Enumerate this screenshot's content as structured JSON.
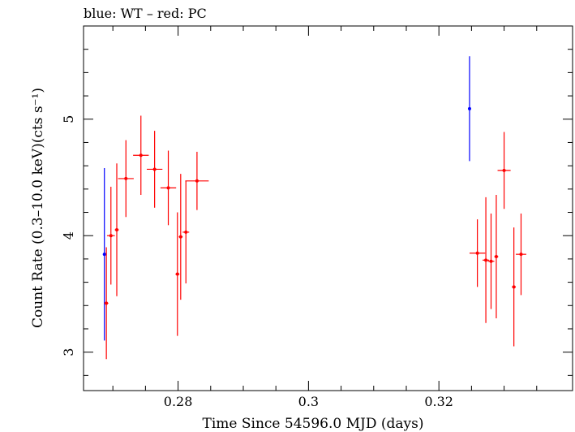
{
  "header": "blue: WT – red: PC",
  "chart_data": {
    "type": "scatter",
    "xlabel": "Time Since 54596.0 MJD (days)",
    "ylabel": "Count Rate (0.3–10.0 keV)(cts s⁻¹)",
    "xlim": [
      0.2655,
      0.3405
    ],
    "ylim": [
      2.67,
      5.8
    ],
    "x_ticks": [
      {
        "value": 0.28,
        "label": "0.28"
      },
      {
        "value": 0.3,
        "label": "0.3"
      },
      {
        "value": 0.32,
        "label": "0.32"
      }
    ],
    "y_ticks": [
      {
        "value": 3,
        "label": "3"
      },
      {
        "value": 4,
        "label": "4"
      },
      {
        "value": 5,
        "label": "5"
      }
    ],
    "series": [
      {
        "key": "wt",
        "color": "#0000ff",
        "points": [
          {
            "x": 0.2687,
            "y": 3.84,
            "xerr": 0.0001,
            "yerr_lo": 0.74,
            "yerr_hi": 0.74
          },
          {
            "x": 0.3247,
            "y": 5.09,
            "xerr": 0.0001,
            "yerr_lo": 0.45,
            "yerr_hi": 0.45
          }
        ]
      },
      {
        "key": "pc",
        "color": "#ff0000",
        "points": [
          {
            "x": 0.269,
            "y": 3.42,
            "xerr": 0.0003,
            "yerr_lo": 0.48,
            "yerr_hi": 0.48
          },
          {
            "x": 0.2697,
            "y": 4.0,
            "xerr": 0.0006,
            "yerr_lo": 0.42,
            "yerr_hi": 0.42
          },
          {
            "x": 0.2706,
            "y": 4.05,
            "xerr": 0.0003,
            "yerr_lo": 0.57,
            "yerr_hi": 0.57
          },
          {
            "x": 0.272,
            "y": 4.49,
            "xerr": 0.0012,
            "yerr_lo": 0.33,
            "yerr_hi": 0.33
          },
          {
            "x": 0.2743,
            "y": 4.69,
            "xerr": 0.0012,
            "yerr_lo": 0.34,
            "yerr_hi": 0.34
          },
          {
            "x": 0.2764,
            "y": 4.57,
            "xerr": 0.0012,
            "yerr_lo": 0.33,
            "yerr_hi": 0.33
          },
          {
            "x": 0.2785,
            "y": 4.41,
            "xerr": 0.0012,
            "yerr_lo": 0.32,
            "yerr_hi": 0.32
          },
          {
            "x": 0.2799,
            "y": 3.67,
            "xerr": 0.0003,
            "yerr_lo": 0.53,
            "yerr_hi": 0.53
          },
          {
            "x": 0.2804,
            "y": 3.99,
            "xerr": 0.0003,
            "yerr_lo": 0.54,
            "yerr_hi": 0.54
          },
          {
            "x": 0.2812,
            "y": 4.03,
            "xerr": 0.0005,
            "yerr_lo": 0.44,
            "yerr_hi": 0.44
          },
          {
            "x": 0.2829,
            "y": 4.47,
            "xerr": 0.0018,
            "yerr_lo": 0.25,
            "yerr_hi": 0.25
          },
          {
            "x": 0.3259,
            "y": 3.85,
            "xerr": 0.0012,
            "yerr_lo": 0.29,
            "yerr_hi": 0.29
          },
          {
            "x": 0.3272,
            "y": 3.79,
            "xerr": 0.0005,
            "yerr_lo": 0.54,
            "yerr_hi": 0.54
          },
          {
            "x": 0.328,
            "y": 3.78,
            "xerr": 0.0005,
            "yerr_lo": 0.41,
            "yerr_hi": 0.41
          },
          {
            "x": 0.3288,
            "y": 3.82,
            "xerr": 0.0003,
            "yerr_lo": 0.53,
            "yerr_hi": 0.53
          },
          {
            "x": 0.33,
            "y": 4.56,
            "xerr": 0.001,
            "yerr_lo": 0.33,
            "yerr_hi": 0.33
          },
          {
            "x": 0.3315,
            "y": 3.56,
            "xerr": 0.0003,
            "yerr_lo": 0.51,
            "yerr_hi": 0.51
          },
          {
            "x": 0.3326,
            "y": 3.84,
            "xerr": 0.0008,
            "yerr_lo": 0.35,
            "yerr_hi": 0.35
          }
        ]
      }
    ]
  }
}
